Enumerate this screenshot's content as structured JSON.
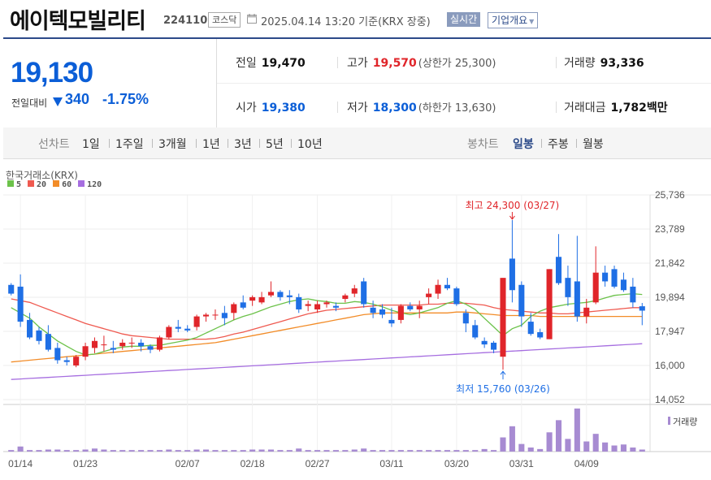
{
  "header": {
    "name": "에이텍모빌리티",
    "code": "224110",
    "market": "코스닥",
    "time": "2025.04.14 13:20  기준(KRX 장중)",
    "realtime": "실시간",
    "company_btn": "기업개요"
  },
  "quote": {
    "price": "19,130",
    "change_label": "전일대비",
    "change": "340",
    "change_pct": "-1.75%",
    "prev_close_label": "전일",
    "prev_close": "19,470",
    "high_label": "고가",
    "high": "19,570",
    "upper_limit": "(상한가 25,300)",
    "volume_label": "거래량",
    "volume": "93,336",
    "open_label": "시가",
    "open": "19,380",
    "low_label": "저가",
    "low": "18,300",
    "lower_limit": "(하한가 13,630)",
    "amount_label": "거래대금",
    "amount": "1,782",
    "amount_unit": "백만"
  },
  "tabs": {
    "line_chart": "선차트",
    "periods": [
      "1일",
      "1주일",
      "3개월",
      "1년",
      "3년",
      "5년",
      "10년"
    ],
    "candle_chart": "봉차트",
    "candle_periods": [
      "일봉",
      "주봉",
      "월봉"
    ],
    "selected_candle": "일봉"
  },
  "colors": {
    "up": "#e0252a",
    "down": "#1f6fe5",
    "ma5": "#6cc24a",
    "ma20": "#ef5a50",
    "ma60": "#f28c28",
    "ma120": "#a66ee0",
    "volume": "#a78bd2",
    "accent": "#2c4a89"
  },
  "chart_data": {
    "type": "candlestick",
    "source": "한국거래소(KRX)",
    "legend": [
      {
        "name": "5",
        "color": "#6cc24a"
      },
      {
        "name": "20",
        "color": "#ef5a50"
      },
      {
        "name": "60",
        "color": "#f28c28"
      },
      {
        "name": "120",
        "color": "#a66ee0"
      }
    ],
    "ylim": [
      14052,
      25736
    ],
    "y_ticks": [
      "25,736",
      "23,789",
      "21,842",
      "19,894",
      "17,947",
      "16,000",
      "14,052"
    ],
    "y_tick_values": [
      25736,
      23789,
      21842,
      19894,
      17947,
      16000,
      14052
    ],
    "x_ticks": [
      {
        "label": "01/14",
        "index": 1
      },
      {
        "label": "01/23",
        "index": 8
      },
      {
        "label": "02/07",
        "index": 19
      },
      {
        "label": "02/18",
        "index": 26
      },
      {
        "label": "02/27",
        "index": 33
      },
      {
        "label": "03/11",
        "index": 41
      },
      {
        "label": "03/20",
        "index": 48
      },
      {
        "label": "03/31",
        "index": 55
      },
      {
        "label": "04/09",
        "index": 62
      }
    ],
    "candles": [
      [
        20600,
        20700,
        20000,
        20100
      ],
      [
        20500,
        21200,
        18200,
        18500
      ],
      [
        18600,
        19000,
        17500,
        17600
      ],
      [
        18000,
        18200,
        17200,
        17400
      ],
      [
        17800,
        18300,
        16800,
        16900
      ],
      [
        17000,
        17300,
        16100,
        16300
      ],
      [
        16300,
        16500,
        16000,
        16200
      ],
      [
        16000,
        16600,
        15900,
        16500
      ],
      [
        16500,
        17300,
        16300,
        17100
      ],
      [
        17000,
        17600,
        16700,
        17400
      ],
      [
        17200,
        17700,
        16800,
        17200
      ],
      [
        17000,
        17400,
        16700,
        16900
      ],
      [
        17100,
        17500,
        16900,
        17300
      ],
      [
        17300,
        17600,
        17000,
        17300
      ],
      [
        17300,
        17500,
        16800,
        17100
      ],
      [
        17100,
        17200,
        16700,
        16900
      ],
      [
        16900,
        17700,
        16800,
        17600
      ],
      [
        17600,
        18300,
        17500,
        18200
      ],
      [
        18200,
        18600,
        17900,
        18100
      ],
      [
        18100,
        18300,
        17900,
        18000
      ],
      [
        18200,
        18900,
        18000,
        18800
      ],
      [
        18800,
        19000,
        18500,
        18900
      ],
      [
        18900,
        19200,
        18600,
        18900
      ],
      [
        19000,
        19400,
        18300,
        18700
      ],
      [
        19000,
        19600,
        18600,
        19500
      ],
      [
        19600,
        20000,
        19200,
        19300
      ],
      [
        19700,
        20000,
        19400,
        19900
      ],
      [
        19600,
        20200,
        19500,
        19900
      ],
      [
        20000,
        20800,
        19900,
        20200
      ],
      [
        20200,
        20300,
        19700,
        19900
      ],
      [
        20000,
        20300,
        19500,
        19900
      ],
      [
        19900,
        20100,
        19000,
        19200
      ],
      [
        19400,
        19700,
        19100,
        19500
      ],
      [
        19200,
        19700,
        19000,
        19500
      ],
      [
        19500,
        19700,
        19300,
        19600
      ],
      [
        19400,
        19600,
        19100,
        19300
      ],
      [
        19800,
        20100,
        19600,
        20000
      ],
      [
        20100,
        20600,
        19900,
        20400
      ],
      [
        20800,
        21000,
        19300,
        19500
      ],
      [
        19300,
        19700,
        18700,
        19000
      ],
      [
        19200,
        19500,
        18700,
        18900
      ],
      [
        18600,
        19300,
        18200,
        18400
      ],
      [
        18600,
        19500,
        18400,
        19400
      ],
      [
        19400,
        19600,
        19100,
        19200
      ],
      [
        19200,
        19700,
        18700,
        19400
      ],
      [
        19900,
        20400,
        19500,
        20100
      ],
      [
        20100,
        20900,
        19800,
        20600
      ],
      [
        20600,
        21000,
        20300,
        20400
      ],
      [
        20400,
        20500,
        19400,
        19500
      ],
      [
        19000,
        19200,
        17900,
        18400
      ],
      [
        18300,
        18600,
        17500,
        17600
      ],
      [
        17400,
        17600,
        17000,
        17200
      ],
      [
        17300,
        17400,
        16700,
        16900
      ],
      [
        16500,
        21000,
        15760,
        21000
      ],
      [
        22100,
        24300,
        19600,
        20300
      ],
      [
        20600,
        20800,
        18200,
        18800
      ],
      [
        18500,
        19000,
        17700,
        17800
      ],
      [
        17900,
        18100,
        17500,
        17600
      ],
      [
        17500,
        21500,
        17500,
        21500
      ],
      [
        22200,
        23500,
        20600,
        20700
      ],
      [
        21000,
        21700,
        19400,
        19900
      ],
      [
        20800,
        23400,
        18500,
        18800
      ],
      [
        18800,
        19800,
        18400,
        19300
      ],
      [
        19600,
        22800,
        19500,
        21300
      ],
      [
        21300,
        21700,
        20500,
        20800
      ],
      [
        21500,
        21700,
        20400,
        20500
      ],
      [
        20900,
        21300,
        20200,
        20300
      ],
      [
        20500,
        21000,
        19300,
        19600
      ],
      [
        19380,
        19570,
        18300,
        19130
      ]
    ],
    "volume": [
      3,
      10,
      3,
      3,
      4,
      4,
      3,
      3,
      4,
      6,
      4,
      3,
      3,
      3,
      3,
      3,
      3,
      4,
      3,
      3,
      4,
      4,
      3,
      3,
      3,
      3,
      4,
      4,
      4,
      3,
      3,
      6,
      3,
      3,
      3,
      3,
      3,
      4,
      6,
      3,
      3,
      3,
      3,
      3,
      3,
      3,
      3,
      3,
      3,
      3,
      3,
      5,
      3,
      28,
      50,
      15,
      8,
      5,
      38,
      62,
      25,
      85,
      20,
      35,
      18,
      12,
      14,
      8,
      4
    ],
    "ma5": [
      19300,
      19000,
      18700,
      18200,
      17800,
      17400,
      17100,
      16800,
      16600,
      16650,
      16800,
      16950,
      17050,
      17100,
      17100,
      17150,
      17150,
      17250,
      17350,
      17450,
      17600,
      17850,
      18100,
      18350,
      18600,
      18800,
      18950,
      19150,
      19350,
      19500,
      19650,
      19750,
      19800,
      19700,
      19650,
      19550,
      19550,
      19650,
      19600,
      19500,
      19350,
      19150,
      19000,
      18900,
      19000,
      19150,
      19300,
      19550,
      19700,
      19500,
      19200,
      18700,
      18200,
      17700,
      18100,
      18300,
      18800,
      19100,
      19300,
      19400,
      19500,
      19550,
      19600,
      19700,
      19850,
      20000,
      20050,
      20100,
      20050
    ],
    "ma20": [
      19800,
      19700,
      19600,
      19400,
      19200,
      19000,
      18800,
      18600,
      18400,
      18250,
      18100,
      17950,
      17800,
      17700,
      17650,
      17600,
      17550,
      17500,
      17500,
      17500,
      17500,
      17500,
      17550,
      17650,
      17800,
      17900,
      18050,
      18200,
      18350,
      18500,
      18650,
      18800,
      18950,
      19050,
      19150,
      19200,
      19250,
      19300,
      19350,
      19400,
      19450,
      19450,
      19450,
      19450,
      19450,
      19500,
      19500,
      19550,
      19550,
      19550,
      19500,
      19450,
      19300,
      19200,
      19150,
      19100,
      19050,
      19000,
      19000,
      18950,
      18950,
      19000,
      19050,
      19100,
      19150,
      19200,
      19250,
      19300,
      19300
    ],
    "ma60": [
      16200,
      16250,
      16300,
      16350,
      16400,
      16450,
      16500,
      16550,
      16600,
      16650,
      16700,
      16750,
      16800,
      16850,
      16900,
      16950,
      17000,
      17050,
      17100,
      17150,
      17200,
      17250,
      17300,
      17400,
      17500,
      17600,
      17700,
      17800,
      17900,
      18000,
      18100,
      18200,
      18300,
      18400,
      18500,
      18600,
      18700,
      18800,
      18900,
      18950,
      19000,
      19000,
      19000,
      19000,
      19000,
      19000,
      19000,
      19000,
      19050,
      19050,
      19000,
      18950,
      18900,
      18850,
      18850,
      18850,
      18850,
      18800,
      18800,
      18800,
      18800,
      18800,
      18800,
      18800,
      18800,
      18800,
      18800,
      18800,
      18800
    ],
    "ma120": [
      15200,
      15230,
      15260,
      15290,
      15320,
      15350,
      15380,
      15410,
      15440,
      15470,
      15500,
      15530,
      15560,
      15590,
      15620,
      15650,
      15680,
      15710,
      15740,
      15770,
      15800,
      15830,
      15860,
      15890,
      15920,
      15950,
      15980,
      16010,
      16040,
      16070,
      16100,
      16130,
      16160,
      16190,
      16220,
      16250,
      16280,
      16310,
      16340,
      16370,
      16400,
      16430,
      16460,
      16490,
      16520,
      16550,
      16580,
      16610,
      16640,
      16670,
      16700,
      16730,
      16760,
      16790,
      16820,
      16850,
      16880,
      16910,
      16940,
      16970,
      17000,
      17030,
      17060,
      17090,
      17120,
      17150,
      17180,
      17210,
      17240
    ],
    "annotations": {
      "high": {
        "text": "최고 24,300 (03/27)",
        "index": 54,
        "value": 24300
      },
      "low": {
        "text": "최저 15,760 (03/26)",
        "index": 53,
        "value": 15760
      }
    },
    "volume_label": "거래량"
  }
}
